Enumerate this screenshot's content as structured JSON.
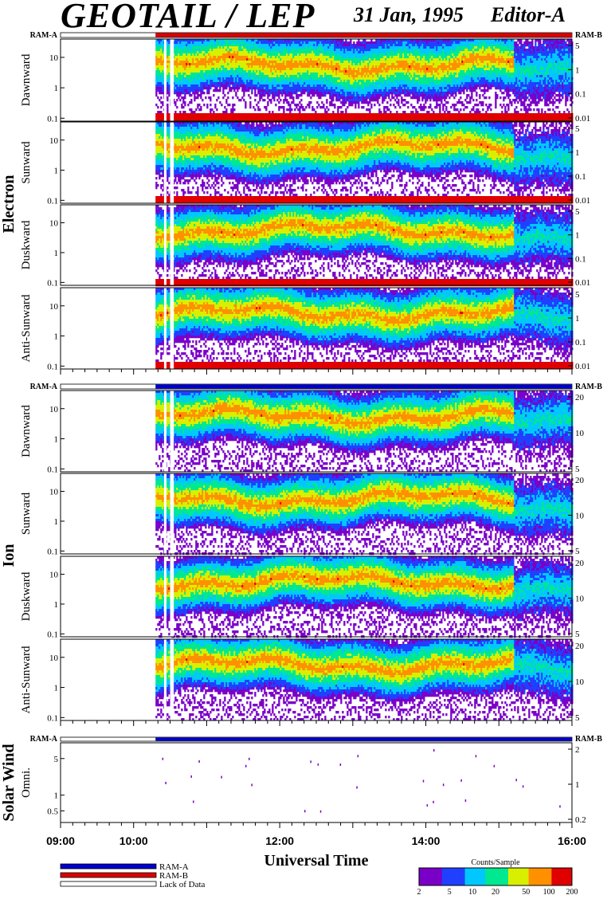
{
  "header": {
    "instrument": "GEOTAIL / LEP",
    "date": "31 Jan, 1995",
    "editor": "Editor-A"
  },
  "chart_data": {
    "type": "heatmap",
    "x_range": [
      "09:00",
      "16:00"
    ],
    "x_ticks": [
      "09:00",
      "10:00",
      "12:00",
      "14:00",
      "16:00"
    ],
    "data_start": "10:18",
    "gaps": [
      [
        "10:25",
        "10:27"
      ],
      [
        "10:30",
        "10:33"
      ]
    ],
    "xlabel": "Universal Time",
    "ram_left": "RAM-A",
    "ram_right": "RAM-B",
    "groups": [
      {
        "name": "Electron",
        "bar_mode": "RAM-B",
        "left_ticks": [
          "10",
          "1",
          "0.1"
        ],
        "left_range": [
          0.08,
          40
        ],
        "right_ticks": [
          "5",
          "1",
          "0.1",
          "0.01"
        ],
        "panels": [
          "Dawnward",
          "Sunward",
          "Duskward",
          "Anti-Sunward"
        ]
      },
      {
        "name": "Ion",
        "bar_mode": "RAM-A",
        "left_ticks": [
          "10",
          "1",
          "0.1"
        ],
        "left_range": [
          0.08,
          40
        ],
        "right_ticks": [
          "20",
          "10",
          "5"
        ],
        "panels": [
          "Dawnward",
          "Sunward",
          "Duskward",
          "Anti-Sunward"
        ]
      },
      {
        "name": "Solar Wind",
        "bar_mode": "RAM-A",
        "left_ticks": [
          "5",
          "1",
          "0.5"
        ],
        "left_range": [
          0.3,
          10
        ],
        "right_ticks": [
          "2",
          "1",
          "0.2"
        ],
        "panels": [
          "Omni."
        ]
      }
    ],
    "legend": {
      "items": [
        {
          "label": "RAM-A",
          "color": "#0000cc"
        },
        {
          "label": "RAM-B",
          "color": "#dd0000"
        },
        {
          "label": "Lack of Data",
          "color": "#ffffff"
        }
      ]
    },
    "colorbar": {
      "title": "Counts/Sample",
      "ticks": [
        "2",
        "5",
        "10",
        "20",
        "50",
        "100",
        "200"
      ],
      "colors": [
        "#7a00c8",
        "#2040ff",
        "#00c8ff",
        "#00e890",
        "#d8f000",
        "#ff9000",
        "#e00000"
      ]
    }
  }
}
